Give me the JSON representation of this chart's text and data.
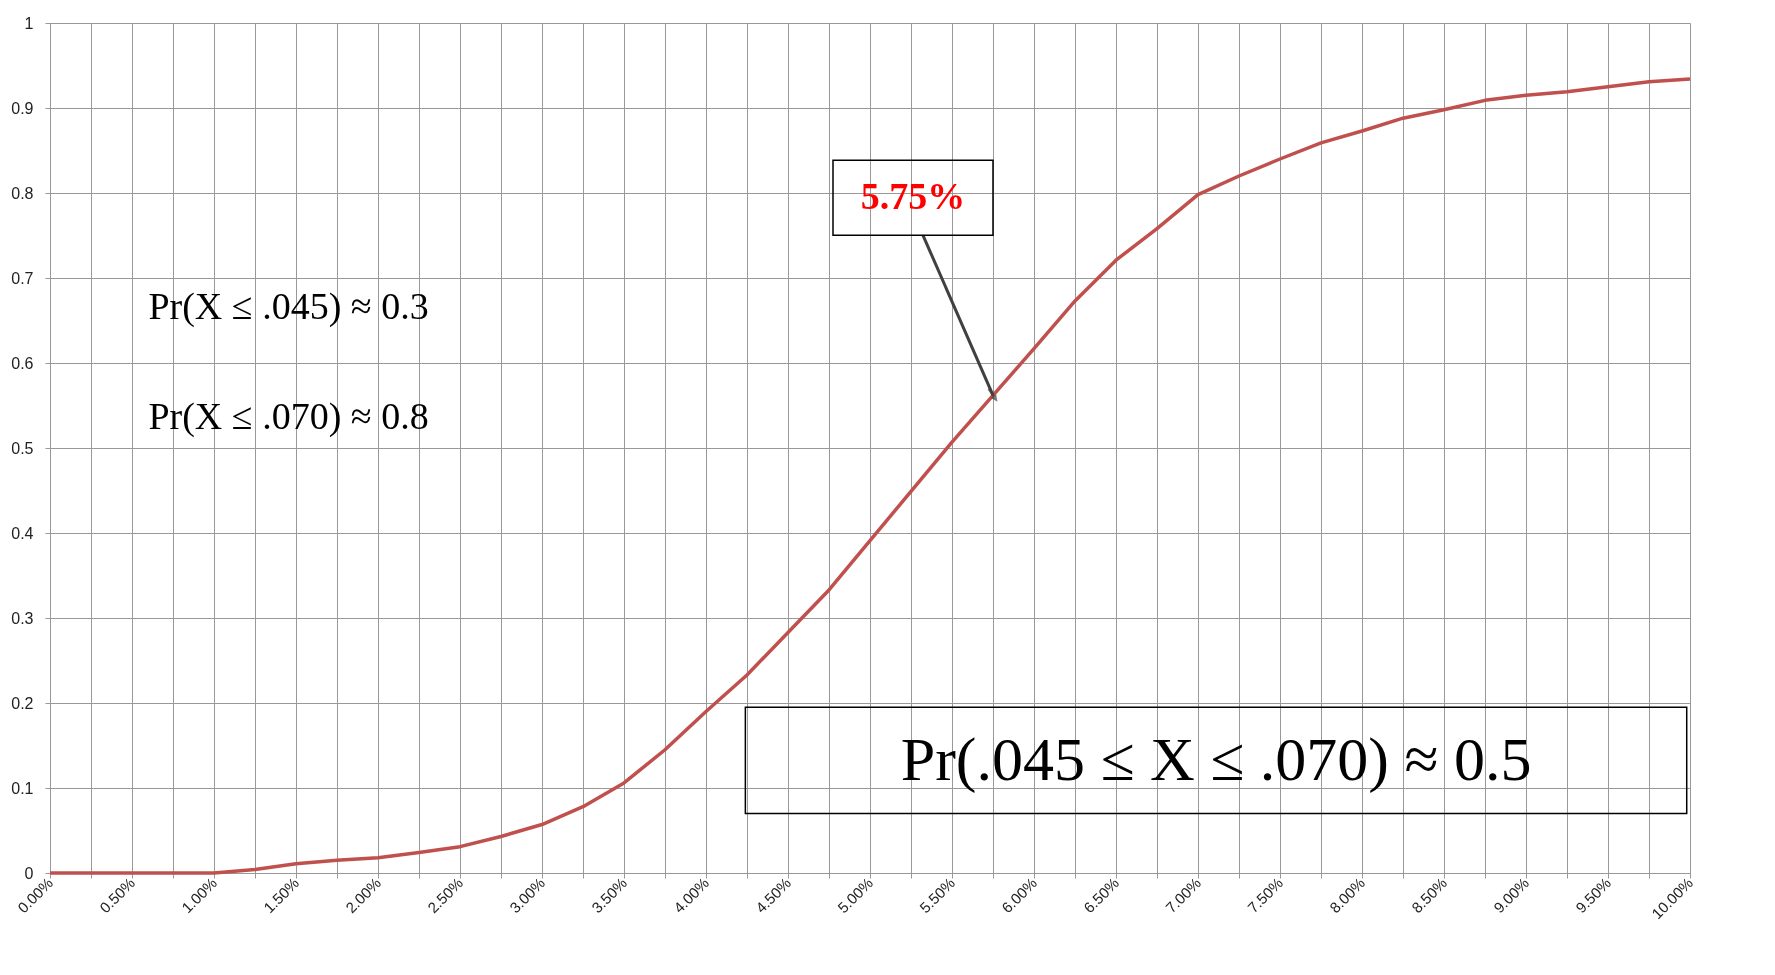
{
  "chart_data": {
    "type": "line",
    "x": [
      0,
      0.25,
      0.5,
      0.75,
      1.0,
      1.25,
      1.5,
      1.75,
      2.0,
      2.25,
      2.5,
      2.75,
      3.0,
      3.25,
      3.5,
      3.75,
      4.0,
      4.25,
      4.5,
      4.75,
      5.0,
      5.25,
      5.5,
      5.75,
      6.0,
      6.25,
      6.5,
      6.75,
      7.0,
      7.25,
      7.5,
      7.75,
      8.0,
      8.25,
      8.5,
      8.75,
      9.0,
      9.25,
      9.5,
      9.75,
      10.0
    ],
    "series": [
      {
        "color": "#c0504d",
        "values": [
          0,
          0,
          0,
          0,
          0,
          0.004,
          0.011,
          0.015,
          0.018,
          0.024,
          0.031,
          0.043,
          0.057,
          0.078,
          0.106,
          0.145,
          0.19,
          0.233,
          0.283,
          0.333,
          0.391,
          0.449,
          0.507,
          0.562,
          0.617,
          0.673,
          0.721,
          0.758,
          0.798,
          0.82,
          0.84,
          0.859,
          0.873,
          0.888,
          0.898,
          0.909,
          0.915,
          0.919,
          0.925,
          0.931,
          0.934
        ]
      }
    ],
    "xlim": [
      0,
      10
    ],
    "xticks": [
      {
        "value": 0,
        "label": "0.00%"
      },
      {
        "value": 0.25,
        "label": null
      },
      {
        "value": 0.5,
        "label": "0.50%"
      },
      {
        "value": 0.75,
        "label": null
      },
      {
        "value": 1,
        "label": "1.00%"
      },
      {
        "value": 1.25,
        "label": null
      },
      {
        "value": 1.5,
        "label": "1.50%"
      },
      {
        "value": 1.75,
        "label": null
      },
      {
        "value": 2,
        "label": "2.00%"
      },
      {
        "value": 2.25,
        "label": null
      },
      {
        "value": 2.5,
        "label": "2.50%"
      },
      {
        "value": 2.75,
        "label": null
      },
      {
        "value": 3,
        "label": "3.00%"
      },
      {
        "value": 3.25,
        "label": null
      },
      {
        "value": 3.5,
        "label": "3.50%"
      },
      {
        "value": 3.75,
        "label": null
      },
      {
        "value": 4,
        "label": "4.00%"
      },
      {
        "value": 4.25,
        "label": null
      },
      {
        "value": 4.5,
        "label": "4.50%"
      },
      {
        "value": 4.75,
        "label": null
      },
      {
        "value": 5,
        "label": "5.00%"
      },
      {
        "value": 5.25,
        "label": null
      },
      {
        "value": 5.5,
        "label": "5.50%"
      },
      {
        "value": 5.75,
        "label": null
      },
      {
        "value": 6,
        "label": "6.00%"
      },
      {
        "value": 6.25,
        "label": null
      },
      {
        "value": 6.5,
        "label": "6.50%"
      },
      {
        "value": 6.75,
        "label": null
      },
      {
        "value": 7,
        "label": "7.00%"
      },
      {
        "value": 7.25,
        "label": null
      },
      {
        "value": 7.5,
        "label": "7.50%"
      },
      {
        "value": 7.75,
        "label": null
      },
      {
        "value": 8,
        "label": "8.00%"
      },
      {
        "value": 8.25,
        "label": null
      },
      {
        "value": 8.5,
        "label": "8.50%"
      },
      {
        "value": 8.75,
        "label": null
      },
      {
        "value": 9,
        "label": "9.00%"
      },
      {
        "value": 9.25,
        "label": null
      },
      {
        "value": 9.5,
        "label": "9.50%"
      },
      {
        "value": 9.75,
        "label": null
      },
      {
        "value": 10,
        "label": "10.00%"
      }
    ],
    "ylim": [
      0,
      1
    ],
    "yticks": [
      0,
      {
        "value": 0.1,
        "label": "0.1"
      },
      {
        "value": 0.2,
        "label": "0.2"
      },
      {
        "value": 0.3,
        "label": "0.3"
      },
      {
        "value": 0.4,
        "label": "0.4"
      },
      {
        "value": 0.5,
        "label": "0.5"
      },
      {
        "value": 0.6,
        "label": "0.6"
      },
      {
        "value": 0.7,
        "label": "0.7"
      },
      {
        "value": 0.8,
        "label": "0.8"
      },
      {
        "value": 0.9,
        "label": "0.9"
      },
      1
    ],
    "grid": true,
    "annotations": [
      "Pr(X ≤ .045) ≈ 0.3",
      "Pr(X ≤ .070) ≈ 0.8",
      {
        "text": "5.75%",
        "x": 5.75,
        "y": 0.562
      },
      "Pr(.045 ≤ X ≤ .070) ≈ 0.5"
    ]
  }
}
